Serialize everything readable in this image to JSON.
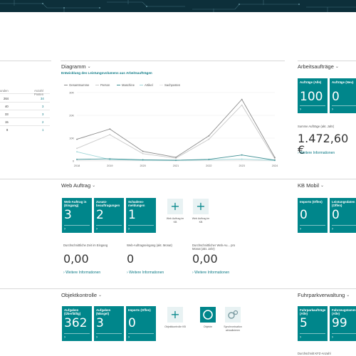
{
  "colors": {
    "accent": "#00868b",
    "link": "#0d7a86",
    "banner": "#0d2f3a"
  },
  "left_list": {
    "col1": "unden",
    "col2": "Anzahl Posten",
    "rows": [
      {
        "a": "264",
        "b": "34"
      },
      {
        "a": "40",
        "b": "3"
      },
      {
        "a": "33",
        "b": "3"
      },
      {
        "a": "15",
        "b": "2"
      },
      {
        "a": "8",
        "b": "1"
      }
    ]
  },
  "diagramm": {
    "title": "Diagramm",
    "subtitle": "Entwicklung des Leistungsvolumens aus Arbeitsaufträgen"
  },
  "chart_data": {
    "type": "line",
    "x": [
      "2018",
      "2019",
      "2020",
      "2021",
      "2022",
      "2023",
      "2024"
    ],
    "y_ticks": [
      "0",
      "10K",
      "20K",
      "30K"
    ],
    "ylim": [
      0,
      30000
    ],
    "legend_position": "top",
    "grid": true,
    "series": [
      {
        "name": "Gesamtsumme",
        "color": "#8a8a8a",
        "values": [
          9500,
          14000,
          4200,
          1600,
          11000,
          27000,
          1500
        ]
      },
      {
        "name": "Person",
        "color": "#c9c9c9",
        "values": [
          5500,
          11500,
          3200,
          1200,
          9500,
          24500,
          900
        ]
      },
      {
        "name": "Maschine",
        "color": "#3d8f93",
        "values": [
          700,
          900,
          500,
          300,
          700,
          2600,
          300
        ]
      },
      {
        "name": "Artikel",
        "color": "#9fd6d8",
        "values": [
          4000,
          600,
          300,
          200,
          500,
          800,
          200
        ]
      },
      {
        "name": "Sachposten",
        "color": "#e7e7e7",
        "values": [
          200,
          200,
          150,
          100,
          200,
          300,
          100
        ]
      }
    ]
  },
  "arbeitsauftraege": {
    "title": "Arbeitsaufträge",
    "tiles": [
      {
        "label": "Aufträge (Alle)",
        "value": "100"
      },
      {
        "label": "Aufträge (Neu)",
        "value": "0"
      }
    ],
    "sum_label": "Summe Aufträge (akt. Jahr)",
    "sum_value": "1.472,60 €",
    "more": "Weitere Informationen"
  },
  "web_auftrag": {
    "title": "Web Auftrag",
    "tiles": [
      {
        "label": "Web-Auftrag in (Eingang)",
        "value": "3"
      },
      {
        "label": "Zusatz-beauftragungen",
        "value": "2"
      },
      {
        "label": "Schadens-meldungen",
        "value": "1"
      }
    ],
    "actions": [
      {
        "label": "Web Auftrag im KB"
      },
      {
        "label": "Web Auftrag im KB"
      }
    ],
    "kpis": [
      {
        "label": "Durchschnittliche Zeit im Eingang",
        "value": "0,00"
      },
      {
        "label": "Web-Auftragseingang (akt. Monat)",
        "value": "0"
      },
      {
        "label": "Durchschnittlicher Web-Au... pro Monat (akt. Jahr)",
        "value": "0,00"
      }
    ],
    "more": "Weitere Informationen"
  },
  "kb_mobil": {
    "title": "KB Mobil",
    "tiles": [
      {
        "label": "Imports (Offen)",
        "value": "0"
      },
      {
        "label": "Leistungsdaten (Offen)",
        "value": "0"
      }
    ]
  },
  "objektkontrolle": {
    "title": "Objektkontrolle",
    "tiles": [
      {
        "label": "Aufgaben (Überfällig)",
        "value": "362"
      },
      {
        "label": "Aufgaben (Mängel)",
        "value": "3"
      },
      {
        "label": "Imports (Offen)",
        "value": "0"
      }
    ],
    "actions": [
      {
        "label": "Objektkontrolle KB"
      },
      {
        "label": "Objekte"
      },
      {
        "label": "Synchronisation aktualisieren"
      }
    ]
  },
  "fuhrpark": {
    "title": "Fuhrparkverwaltung",
    "tiles": [
      {
        "label": "Fuhrparkaufträge (Alle)",
        "value": "5"
      },
      {
        "label": "Fahrzeugstamm (Alle)",
        "value": "99"
      }
    ],
    "footer": "Durchschnitt KFZ-Anzahl"
  }
}
